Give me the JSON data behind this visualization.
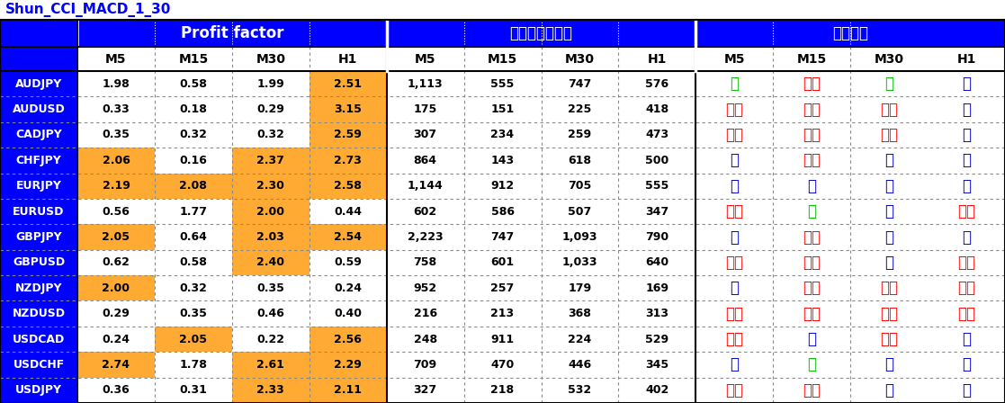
{
  "title": "Shun_CCI_MACD_1_30",
  "title_color": "#0000FF",
  "rows": [
    [
      "AUDJPY",
      "1.98",
      "0.58",
      "1.99",
      "2.51",
      "1,113",
      "555",
      "747",
      "576",
      "良",
      "不可",
      "良",
      "優"
    ],
    [
      "AUDUSD",
      "0.33",
      "0.18",
      "0.29",
      "3.15",
      "175",
      "151",
      "225",
      "418",
      "不可",
      "不可",
      "不可",
      "優"
    ],
    [
      "CADJPY",
      "0.35",
      "0.32",
      "0.32",
      "2.59",
      "307",
      "234",
      "259",
      "473",
      "不可",
      "不可",
      "不可",
      "優"
    ],
    [
      "CHFJPY",
      "2.06",
      "0.16",
      "2.37",
      "2.73",
      "864",
      "143",
      "618",
      "500",
      "優",
      "不可",
      "優",
      "優"
    ],
    [
      "EURJPY",
      "2.19",
      "2.08",
      "2.30",
      "2.58",
      "1,144",
      "912",
      "705",
      "555",
      "優",
      "優",
      "優",
      "優"
    ],
    [
      "EURUSD",
      "0.56",
      "1.77",
      "2.00",
      "0.44",
      "602",
      "586",
      "507",
      "347",
      "不可",
      "良",
      "優",
      "不可"
    ],
    [
      "GBPJPY",
      "2.05",
      "0.64",
      "2.03",
      "2.54",
      "2,223",
      "747",
      "1,093",
      "790",
      "優",
      "不可",
      "優",
      "優"
    ],
    [
      "GBPUSD",
      "0.62",
      "0.58",
      "2.40",
      "0.59",
      "758",
      "601",
      "1,033",
      "640",
      "不可",
      "不可",
      "優",
      "不可"
    ],
    [
      "NZDJPY",
      "2.00",
      "0.32",
      "0.35",
      "0.24",
      "952",
      "257",
      "179",
      "169",
      "優",
      "不可",
      "不可",
      "不可"
    ],
    [
      "NZDUSD",
      "0.29",
      "0.35",
      "0.46",
      "0.40",
      "216",
      "213",
      "368",
      "313",
      "不可",
      "不可",
      "不可",
      "不可"
    ],
    [
      "USDCAD",
      "0.24",
      "2.05",
      "0.22",
      "2.56",
      "248",
      "911",
      "224",
      "529",
      "不可",
      "優",
      "不可",
      "優"
    ],
    [
      "USDCHF",
      "2.74",
      "1.78",
      "2.61",
      "2.29",
      "709",
      "470",
      "446",
      "345",
      "優",
      "良",
      "優",
      "優"
    ],
    [
      "USDJPY",
      "0.36",
      "0.31",
      "2.33",
      "2.11",
      "327",
      "218",
      "532",
      "402",
      "不可",
      "不可",
      "優",
      "優"
    ]
  ],
  "pf_header": "Profit factor",
  "entry_header": "エントリー回数",
  "rec_header": "お勧め度",
  "subheaders": [
    "M5",
    "M15",
    "M30",
    "H1"
  ],
  "bg_blue": "#0000FF",
  "bg_white": "#FFFFFF",
  "bg_orange": "#FFAA33",
  "yu_color": "#0000CC",
  "fuka_color": "#FF0000",
  "ryo_color": "#00BB00"
}
